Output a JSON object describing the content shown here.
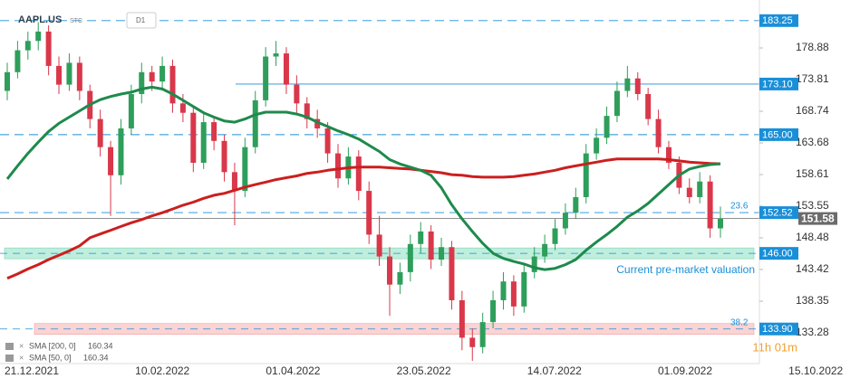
{
  "chart_data": {
    "type": "candlestick",
    "title": "AAPL.US",
    "market": "STC",
    "interval": "D1",
    "x_labels": [
      "21.12.2021",
      "10.02.2022",
      "01.04.2022",
      "23.05.2022",
      "14.07.2022",
      "01.09.2022",
      "15.10.2022"
    ],
    "ylim": [
      128.65,
      186.55
    ],
    "yticks": [
      178.88,
      173.81,
      168.74,
      163.68,
      158.61,
      153.55,
      148.48,
      143.42,
      138.35,
      133.28
    ],
    "grid": false,
    "up_color": "#2e9e5b",
    "down_color": "#d9374a",
    "open": [
      172.0,
      175.0,
      178.5,
      180.0,
      181.5,
      176.0,
      173.0,
      176.5,
      172.0,
      167.5,
      163.0,
      158.5,
      166.0,
      171.5,
      175.0,
      173.5,
      176.0,
      170.0,
      168.5,
      160.5,
      167.0,
      164.0,
      159.0,
      156.0,
      163.0,
      170.5,
      177.5,
      178.0,
      173.0,
      170.0,
      167.5,
      166.0,
      162.0,
      158.0,
      161.5,
      156.0,
      149.0,
      145.5,
      141.0,
      143.0,
      147.5,
      149.5,
      145.0,
      147.0,
      138.5,
      132.5,
      131.0,
      135.0,
      138.5,
      141.5,
      137.5,
      143.0,
      145.5,
      147.5,
      150.0,
      152.5,
      155.0,
      162.0,
      164.5,
      168.0,
      172.0,
      174.0,
      171.5,
      167.5,
      163.0,
      160.5,
      156.5,
      155.0,
      157.5,
      150.0
    ],
    "high": [
      176.5,
      180,
      181.5,
      183,
      182.5,
      177.5,
      178,
      177.5,
      173,
      169,
      164,
      167.5,
      173,
      176.5,
      176,
      177.5,
      177,
      171.5,
      169.5,
      168.5,
      168,
      165,
      160.5,
      164.5,
      172,
      179,
      180,
      179,
      174.5,
      171,
      169,
      167,
      163.5,
      163,
      162.5,
      157.5,
      152,
      147,
      144.5,
      149,
      151,
      150.5,
      148.5,
      148,
      140,
      134,
      136.5,
      140,
      143,
      142.5,
      144.5,
      147,
      149,
      151.5,
      154,
      156.5,
      163.5,
      166,
      169.5,
      173.5,
      176,
      175,
      172.5,
      169,
      164,
      161.5,
      158,
      159,
      158.5,
      153.5
    ],
    "low": [
      170.5,
      174,
      177,
      178.5,
      174.5,
      171.5,
      172,
      170.5,
      166,
      161.5,
      152,
      157,
      165,
      170,
      172,
      172.5,
      168.5,
      167,
      159,
      159.5,
      162.5,
      157.5,
      150.5,
      155,
      162,
      169.5,
      176,
      171.5,
      168.5,
      166,
      164.5,
      160.5,
      156.5,
      157,
      154.5,
      147.5,
      144,
      136,
      139.5,
      141.5,
      146,
      143.5,
      144,
      137,
      130.5,
      128.8,
      130,
      134,
      137,
      136,
      136.5,
      142,
      144.5,
      146.5,
      149,
      151.5,
      154,
      161,
      163.5,
      167,
      171,
      170.5,
      166.5,
      162,
      159.5,
      155.5,
      154,
      154,
      148.5,
      148.5
    ],
    "close": [
      175.0,
      178.5,
      180.0,
      181.5,
      176.0,
      173.0,
      176.5,
      172.0,
      167.5,
      163.0,
      158.5,
      166.0,
      171.5,
      175.0,
      173.5,
      176.0,
      170.0,
      168.5,
      160.5,
      167.0,
      164.0,
      159.0,
      156.0,
      163.0,
      170.5,
      177.5,
      178.0,
      173.0,
      170.0,
      167.5,
      166.0,
      162.0,
      158.0,
      161.5,
      156.0,
      149.0,
      145.5,
      141.0,
      143.0,
      147.5,
      149.5,
      145.0,
      147.0,
      138.5,
      132.5,
      131.0,
      135.0,
      138.5,
      141.5,
      137.5,
      143.0,
      145.5,
      147.5,
      150.0,
      152.5,
      155.0,
      162.0,
      164.5,
      168.0,
      172.0,
      174.0,
      171.5,
      167.5,
      163.0,
      160.5,
      156.5,
      155.0,
      157.5,
      150.0,
      151.58
    ],
    "series": [
      {
        "name": "SMA [200, 0]",
        "last": 160.34,
        "color": "#cc1f1f",
        "values": [
          142,
          142.7,
          143.5,
          144.2,
          145,
          145.7,
          146.4,
          147.2,
          148.5,
          149.1,
          149.7,
          150.3,
          150.9,
          151.4,
          152,
          152.5,
          153.1,
          153.7,
          154.2,
          154.8,
          155.3,
          155.6,
          156.1,
          156.6,
          157,
          157.4,
          157.8,
          158.1,
          158.4,
          158.8,
          159,
          159.3,
          159.5,
          159.7,
          159.8,
          159.8,
          159.8,
          159.7,
          159.6,
          159.5,
          159.3,
          159.1,
          158.9,
          158.6,
          158.5,
          158.3,
          158.2,
          158.2,
          158.2,
          158.3,
          158.5,
          158.7,
          159,
          159.3,
          159.7,
          160,
          160.3,
          160.6,
          160.9,
          161.1,
          161.1,
          161.1,
          161.1,
          161.1,
          161,
          160.8,
          160.6,
          160.5,
          160.4,
          160.34
        ]
      },
      {
        "name": "SMA [50, 0]",
        "last": 160.34,
        "color": "#1e8a4c",
        "values": [
          157.9,
          160,
          162,
          163.8,
          165.5,
          166.8,
          167.8,
          168.8,
          169.8,
          170.6,
          171.1,
          171.5,
          171.8,
          172.3,
          172.6,
          172.3,
          171.5,
          170.5,
          169.5,
          168.5,
          167.8,
          167.2,
          167,
          167.5,
          168.2,
          168.6,
          168.6,
          168.6,
          168.3,
          167.8,
          167,
          166.3,
          165.6,
          165,
          164.3,
          163.3,
          162.3,
          161,
          160.3,
          159.8,
          159.3,
          158.5,
          156.5,
          153.8,
          151.5,
          149.5,
          147.6,
          146,
          145.2,
          144.7,
          144.3,
          143.7,
          143.4,
          143.6,
          144.2,
          145,
          146.5,
          147.8,
          149,
          150.3,
          151.8,
          152.8,
          154,
          155.5,
          157,
          158.5,
          159.5,
          159.9,
          160.2,
          160.34
        ]
      }
    ],
    "levels": [
      {
        "value": 183.25,
        "style": "dashed",
        "color": "#1a8fd8"
      },
      {
        "value": 173.1,
        "label": "173.10",
        "style": "solid",
        "color": "#1a8fd8"
      },
      {
        "value": 165.0,
        "label": "165.00",
        "style": "dashed",
        "color": "#1a8fd8"
      },
      {
        "value": 152.52,
        "style": "dashed",
        "color": "#1a8fd8"
      },
      {
        "value": 146.0,
        "label": "146.00",
        "style": "zone",
        "color": "#1a8fd8",
        "zone_color": "#bfeedd"
      },
      {
        "value": 133.9,
        "label": "133.90",
        "style": "zone",
        "color": "#1a8fd8",
        "zone_color": "#fbd3d3"
      }
    ],
    "last_price": 151.58,
    "last_price_color": "#6b6b6b",
    "annotations": [
      "23.6",
      "38.2",
      "Current pre-market valuation"
    ],
    "countdown": "11h 01m"
  }
}
